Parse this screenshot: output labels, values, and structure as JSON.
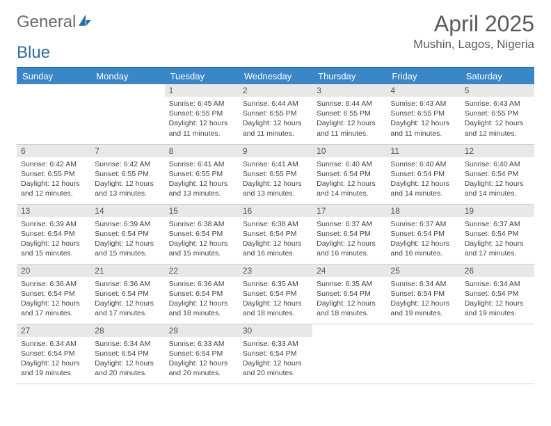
{
  "logo": {
    "part1": "General",
    "part2": "Blue"
  },
  "title": "April 2025",
  "location": "Mushin, Lagos, Nigeria",
  "colors": {
    "header_bg": "#3a87c8",
    "header_border_top": "#2f6fa3",
    "daynum_bg": "#e8e8e8",
    "text": "#444444",
    "logo_gray": "#6b6b6b",
    "logo_blue": "#2f6fa3",
    "row_sep": "#3a87c8"
  },
  "day_names": [
    "Sunday",
    "Monday",
    "Tuesday",
    "Wednesday",
    "Thursday",
    "Friday",
    "Saturday"
  ],
  "weeks": [
    [
      null,
      null,
      {
        "n": "1",
        "sr": "6:45 AM",
        "ss": "6:55 PM",
        "dl": "12 hours and 11 minutes."
      },
      {
        "n": "2",
        "sr": "6:44 AM",
        "ss": "6:55 PM",
        "dl": "12 hours and 11 minutes."
      },
      {
        "n": "3",
        "sr": "6:44 AM",
        "ss": "6:55 PM",
        "dl": "12 hours and 11 minutes."
      },
      {
        "n": "4",
        "sr": "6:43 AM",
        "ss": "6:55 PM",
        "dl": "12 hours and 11 minutes."
      },
      {
        "n": "5",
        "sr": "6:43 AM",
        "ss": "6:55 PM",
        "dl": "12 hours and 12 minutes."
      }
    ],
    [
      {
        "n": "6",
        "sr": "6:42 AM",
        "ss": "6:55 PM",
        "dl": "12 hours and 12 minutes."
      },
      {
        "n": "7",
        "sr": "6:42 AM",
        "ss": "6:55 PM",
        "dl": "12 hours and 13 minutes."
      },
      {
        "n": "8",
        "sr": "6:41 AM",
        "ss": "6:55 PM",
        "dl": "12 hours and 13 minutes."
      },
      {
        "n": "9",
        "sr": "6:41 AM",
        "ss": "6:55 PM",
        "dl": "12 hours and 13 minutes."
      },
      {
        "n": "10",
        "sr": "6:40 AM",
        "ss": "6:54 PM",
        "dl": "12 hours and 14 minutes."
      },
      {
        "n": "11",
        "sr": "6:40 AM",
        "ss": "6:54 PM",
        "dl": "12 hours and 14 minutes."
      },
      {
        "n": "12",
        "sr": "6:40 AM",
        "ss": "6:54 PM",
        "dl": "12 hours and 14 minutes."
      }
    ],
    [
      {
        "n": "13",
        "sr": "6:39 AM",
        "ss": "6:54 PM",
        "dl": "12 hours and 15 minutes."
      },
      {
        "n": "14",
        "sr": "6:39 AM",
        "ss": "6:54 PM",
        "dl": "12 hours and 15 minutes."
      },
      {
        "n": "15",
        "sr": "6:38 AM",
        "ss": "6:54 PM",
        "dl": "12 hours and 15 minutes."
      },
      {
        "n": "16",
        "sr": "6:38 AM",
        "ss": "6:54 PM",
        "dl": "12 hours and 16 minutes."
      },
      {
        "n": "17",
        "sr": "6:37 AM",
        "ss": "6:54 PM",
        "dl": "12 hours and 16 minutes."
      },
      {
        "n": "18",
        "sr": "6:37 AM",
        "ss": "6:54 PM",
        "dl": "12 hours and 16 minutes."
      },
      {
        "n": "19",
        "sr": "6:37 AM",
        "ss": "6:54 PM",
        "dl": "12 hours and 17 minutes."
      }
    ],
    [
      {
        "n": "20",
        "sr": "6:36 AM",
        "ss": "6:54 PM",
        "dl": "12 hours and 17 minutes."
      },
      {
        "n": "21",
        "sr": "6:36 AM",
        "ss": "6:54 PM",
        "dl": "12 hours and 17 minutes."
      },
      {
        "n": "22",
        "sr": "6:36 AM",
        "ss": "6:54 PM",
        "dl": "12 hours and 18 minutes."
      },
      {
        "n": "23",
        "sr": "6:35 AM",
        "ss": "6:54 PM",
        "dl": "12 hours and 18 minutes."
      },
      {
        "n": "24",
        "sr": "6:35 AM",
        "ss": "6:54 PM",
        "dl": "12 hours and 18 minutes."
      },
      {
        "n": "25",
        "sr": "6:34 AM",
        "ss": "6:54 PM",
        "dl": "12 hours and 19 minutes."
      },
      {
        "n": "26",
        "sr": "6:34 AM",
        "ss": "6:54 PM",
        "dl": "12 hours and 19 minutes."
      }
    ],
    [
      {
        "n": "27",
        "sr": "6:34 AM",
        "ss": "6:54 PM",
        "dl": "12 hours and 19 minutes."
      },
      {
        "n": "28",
        "sr": "6:34 AM",
        "ss": "6:54 PM",
        "dl": "12 hours and 20 minutes."
      },
      {
        "n": "29",
        "sr": "6:33 AM",
        "ss": "6:54 PM",
        "dl": "12 hours and 20 minutes."
      },
      {
        "n": "30",
        "sr": "6:33 AM",
        "ss": "6:54 PM",
        "dl": "12 hours and 20 minutes."
      },
      null,
      null,
      null
    ]
  ],
  "labels": {
    "sunrise": "Sunrise:",
    "sunset": "Sunset:",
    "daylight": "Daylight:"
  }
}
